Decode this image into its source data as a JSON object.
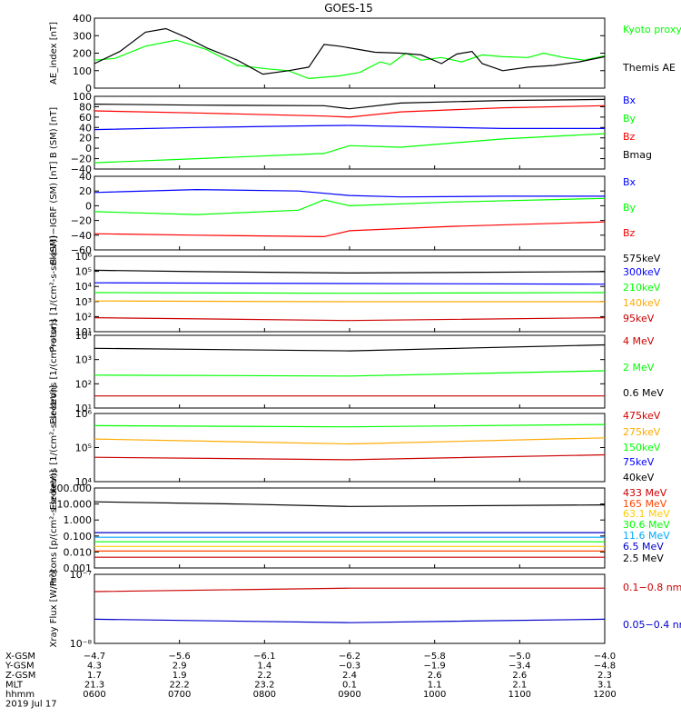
{
  "title": "GOES-15",
  "chart_data": [
    {
      "type": "line",
      "ylabel": "AE_index [nT]",
      "ylim": [
        0,
        400
      ],
      "yticks": [
        "0",
        "100",
        "200",
        "300",
        "400"
      ],
      "series": [
        {
          "name": "Kyoto proxy AE",
          "color": "#00ff00",
          "points": [
            [
              0,
              160
            ],
            [
              0.04,
              170
            ],
            [
              0.1,
              240
            ],
            [
              0.16,
              275
            ],
            [
              0.22,
              220
            ],
            [
              0.28,
              130
            ],
            [
              0.34,
              110
            ],
            [
              0.38,
              100
            ],
            [
              0.42,
              55
            ],
            [
              0.48,
              70
            ],
            [
              0.52,
              90
            ],
            [
              0.56,
              150
            ],
            [
              0.58,
              135
            ],
            [
              0.61,
              200
            ],
            [
              0.64,
              160
            ],
            [
              0.68,
              175
            ],
            [
              0.72,
              150
            ],
            [
              0.76,
              190
            ],
            [
              0.8,
              180
            ],
            [
              0.85,
              175
            ],
            [
              0.88,
              200
            ],
            [
              0.92,
              175
            ],
            [
              0.96,
              160
            ],
            [
              1,
              185
            ]
          ]
        },
        {
          "name": "Themis AE",
          "color": "#000000",
          "points": [
            [
              0,
              140
            ],
            [
              0.05,
              210
            ],
            [
              0.1,
              320
            ],
            [
              0.14,
              340
            ],
            [
              0.18,
              290
            ],
            [
              0.22,
              230
            ],
            [
              0.28,
              160
            ],
            [
              0.33,
              80
            ],
            [
              0.38,
              100
            ],
            [
              0.42,
              120
            ],
            [
              0.45,
              250
            ],
            [
              0.48,
              240
            ],
            [
              0.52,
              220
            ],
            [
              0.55,
              205
            ],
            [
              0.6,
              200
            ],
            [
              0.64,
              190
            ],
            [
              0.68,
              140
            ],
            [
              0.71,
              195
            ],
            [
              0.74,
              210
            ],
            [
              0.76,
              140
            ],
            [
              0.8,
              100
            ],
            [
              0.85,
              120
            ],
            [
              0.9,
              130
            ],
            [
              0.95,
              150
            ],
            [
              1,
              180
            ]
          ]
        }
      ]
    },
    {
      "type": "line",
      "ylabel": "B (SM) [nT]",
      "ylim": [
        -40,
        100
      ],
      "yticks": [
        "−40",
        "−20",
        "0",
        "20",
        "40",
        "60",
        "80",
        "100"
      ],
      "series": [
        {
          "name": "Bx",
          "color": "#0000ff",
          "points": [
            [
              0,
              36
            ],
            [
              0.2,
              40
            ],
            [
              0.4,
              43
            ],
            [
              0.5,
              44
            ],
            [
              0.6,
              42
            ],
            [
              0.8,
              38
            ],
            [
              1,
              38
            ]
          ]
        },
        {
          "name": "By",
          "color": "#00ff00",
          "points": [
            [
              0,
              -28
            ],
            [
              0.2,
              -20
            ],
            [
              0.45,
              -10
            ],
            [
              0.5,
              5
            ],
            [
              0.6,
              2
            ],
            [
              0.8,
              18
            ],
            [
              1,
              28
            ]
          ]
        },
        {
          "name": "Bz",
          "color": "#ff0000",
          "points": [
            [
              0,
              72
            ],
            [
              0.2,
              68
            ],
            [
              0.45,
              62
            ],
            [
              0.5,
              60
            ],
            [
              0.6,
              70
            ],
            [
              0.8,
              78
            ],
            [
              1,
              82
            ]
          ]
        },
        {
          "name": "Bmag",
          "color": "#000000",
          "points": [
            [
              0,
              85
            ],
            [
              0.2,
              83
            ],
            [
              0.45,
              82
            ],
            [
              0.5,
              76
            ],
            [
              0.6,
              87
            ],
            [
              0.8,
              92
            ],
            [
              1,
              94
            ]
          ]
        }
      ]
    },
    {
      "type": "line",
      "ylabel": "B (SM)−IGRF (SM) [nT]",
      "ylim": [
        -60,
        40
      ],
      "yticks": [
        "−60",
        "−40",
        "−20",
        "0",
        "20",
        "40"
      ],
      "series": [
        {
          "name": "Bx",
          "color": "#0000ff",
          "points": [
            [
              0,
              18
            ],
            [
              0.2,
              22
            ],
            [
              0.4,
              20
            ],
            [
              0.5,
              14
            ],
            [
              0.6,
              12
            ],
            [
              0.8,
              13
            ],
            [
              1,
              13
            ]
          ]
        },
        {
          "name": "By",
          "color": "#00ff00",
          "points": [
            [
              0,
              -8
            ],
            [
              0.2,
              -12
            ],
            [
              0.4,
              -6
            ],
            [
              0.45,
              8
            ],
            [
              0.5,
              0
            ],
            [
              0.7,
              5
            ],
            [
              1,
              10
            ]
          ]
        },
        {
          "name": "Bz",
          "color": "#ff0000",
          "points": [
            [
              0,
              -38
            ],
            [
              0.2,
              -40
            ],
            [
              0.45,
              -42
            ],
            [
              0.5,
              -34
            ],
            [
              0.7,
              -28
            ],
            [
              1,
              -22
            ]
          ]
        }
      ]
    },
    {
      "type": "line",
      "log": true,
      "ylabel": "Protons [1/(cm²-s-sr-keV)]",
      "ylim": [
        0.6,
        6
      ],
      "yticks": [
        "10¹",
        "10²",
        "10³",
        "10⁴",
        "10⁵",
        "10⁶"
      ],
      "series": [
        {
          "name": "575keV",
          "color": "#000000",
          "points": [
            [
              0,
              5.0
            ],
            [
              0.2,
              4.9
            ],
            [
              0.5,
              4.8
            ],
            [
              1,
              4.9
            ]
          ]
        },
        {
          "name": "300keV",
          "color": "#0000ff",
          "points": [
            [
              0,
              4.1
            ],
            [
              0.5,
              4.05
            ],
            [
              1,
              4.0
            ]
          ]
        },
        {
          "name": "210keV",
          "color": "#00ff00",
          "points": [
            [
              0,
              3.4
            ],
            [
              0.5,
              3.35
            ],
            [
              1,
              3.4
            ]
          ]
        },
        {
          "name": "140keV",
          "color": "#ffaa00",
          "points": [
            [
              0,
              2.8
            ],
            [
              0.5,
              2.75
            ],
            [
              1,
              2.75
            ]
          ]
        },
        {
          "name": "95keV",
          "color": "#cc0000",
          "points": [
            [
              0,
              1.6
            ],
            [
              0.5,
              1.4
            ],
            [
              1,
              1.6
            ]
          ]
        }
      ]
    },
    {
      "type": "line",
      "log": true,
      "ylabel": "Electrons [1/(cm²-s-sr)]",
      "ylim": [
        0.6,
        4.8
      ],
      "yticks": [
        "10¹",
        "10²",
        "10³",
        "10⁴"
      ],
      "series": [
        {
          "name": "4 MeV",
          "color": "#cc0000",
          "points": [
            [
              0,
              1.3
            ],
            [
              0.5,
              1.3
            ],
            [
              1,
              1.3
            ]
          ]
        },
        {
          "name": "2 MeV",
          "color": "#00ff00",
          "points": [
            [
              0,
              2.5
            ],
            [
              0.5,
              2.45
            ],
            [
              1,
              2.75
            ]
          ]
        },
        {
          "name": "0.6 MeV",
          "color": "#000000",
          "points": [
            [
              0,
              4.05
            ],
            [
              0.5,
              3.9
            ],
            [
              1,
              4.25
            ]
          ]
        }
      ]
    },
    {
      "type": "line",
      "log": true,
      "ylabel": "Electrons [1/(cm²-s-sr-keV)]",
      "ylim": [
        3.2,
        6
      ],
      "yticks": [
        "10⁴",
        "10⁵",
        "10⁶"
      ],
      "series": [
        {
          "name": "475keV",
          "color": "#cc0000",
          "points": [
            [
              0,
              4.2
            ],
            [
              0.5,
              4.1
            ],
            [
              1,
              4.3
            ]
          ]
        },
        {
          "name": "275keV",
          "color": "#ffaa00",
          "points": [
            [
              0,
              4.95
            ],
            [
              0.5,
              4.75
            ],
            [
              1,
              5.0
            ]
          ]
        },
        {
          "name": "150keV",
          "color": "#00ff00",
          "points": [
            [
              0,
              5.5
            ],
            [
              0.5,
              5.45
            ],
            [
              1,
              5.55
            ]
          ]
        },
        {
          "name": "75keV",
          "color": "#0000ff",
          "points": []
        },
        {
          "name": "40keV",
          "color": "#000000",
          "points": []
        }
      ]
    },
    {
      "type": "line",
      "log": true,
      "ylabel": "Protons [p/(cm²-s-sr-keV)]",
      "ylim": [
        -3.2,
        2
      ],
      "yticks": [
        "0.001",
        "0.010",
        "0.100",
        "1.000",
        "10.000",
        "100.000"
      ],
      "series": [
        {
          "name": "433 MeV",
          "color": "#cc0000",
          "points": [
            [
              0,
              -2.5
            ],
            [
              1,
              -2.5
            ]
          ]
        },
        {
          "name": "165 MeV",
          "color": "#ff4400",
          "points": [
            [
              0,
              -2.1
            ],
            [
              1,
              -2.1
            ]
          ]
        },
        {
          "name": "63.1 MeV",
          "color": "#ffcc00",
          "points": [
            [
              0,
              -1.8
            ],
            [
              1,
              -1.8
            ]
          ]
        },
        {
          "name": "30.6 MeV",
          "color": "#00ff00",
          "points": [
            [
              0,
              -1.5
            ],
            [
              1,
              -1.5
            ]
          ]
        },
        {
          "name": "11.6 MeV",
          "color": "#00aaff",
          "points": [
            [
              0,
              -1.2
            ],
            [
              1,
              -1.2
            ]
          ]
        },
        {
          "name": "6.5 MeV",
          "color": "#0000cc",
          "points": [
            [
              0,
              -0.9
            ],
            [
              1,
              -0.9
            ]
          ]
        },
        {
          "name": "2.5 MeV",
          "color": "#000000",
          "points": [
            [
              0,
              1.1
            ],
            [
              0.3,
              0.95
            ],
            [
              0.5,
              0.8
            ],
            [
              1,
              0.9
            ]
          ]
        }
      ]
    },
    {
      "type": "line",
      "log": true,
      "ylabel": "Xray Flux [W/m²]",
      "ylim": [
        -8,
        -7
      ],
      "yticks": [
        "10⁻⁸",
        "10⁻⁷"
      ],
      "series": [
        {
          "name": "0.1−0.8 nm",
          "color": "#cc0000",
          "points": [
            [
              0,
              -7.25
            ],
            [
              0.5,
              -7.2
            ],
            [
              1,
              -7.2
            ]
          ]
        },
        {
          "name": "0.05−0.4 nm",
          "color": "#0000cc",
          "points": [
            [
              0,
              -7.65
            ],
            [
              0.5,
              -7.7
            ],
            [
              1,
              -7.65
            ]
          ]
        }
      ]
    }
  ],
  "ephemeris": {
    "labels": [
      "X-GSM",
      "Y-GSM",
      "Z-GSM",
      "MLT",
      "hhmm",
      "2019 Jul 17"
    ],
    "columns": [
      [
        "−4.7",
        "4.3",
        "1.7",
        "21.3",
        "0600"
      ],
      [
        "−5.6",
        "2.9",
        "1.9",
        "22.2",
        "0700"
      ],
      [
        "−6.1",
        "1.4",
        "2.2",
        "23.2",
        "0800"
      ],
      [
        "−6.2",
        "−0.3",
        "2.4",
        "0.1",
        "0900"
      ],
      [
        "−5.8",
        "−1.9",
        "2.6",
        "1.1",
        "1000"
      ],
      [
        "−5.0",
        "−3.4",
        "2.6",
        "2.1",
        "1100"
      ],
      [
        "−4.0",
        "−4.8",
        "2.3",
        "3.1",
        "1200"
      ]
    ]
  }
}
